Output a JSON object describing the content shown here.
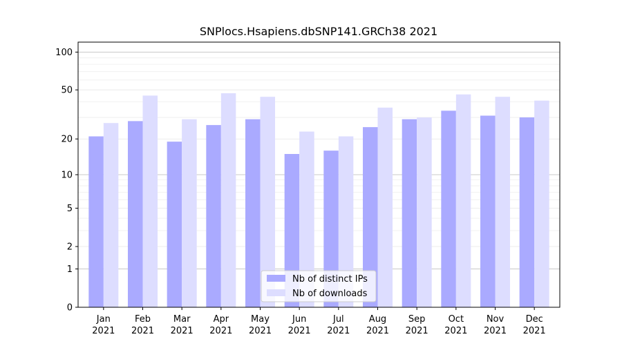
{
  "chart_data": {
    "type": "bar",
    "title": "SNPlocs.Hsapiens.dbSNP141.GRCh38 2021",
    "categories": [
      [
        "Jan",
        "2021"
      ],
      [
        "Feb",
        "2021"
      ],
      [
        "Mar",
        "2021"
      ],
      [
        "Apr",
        "2021"
      ],
      [
        "May",
        "2021"
      ],
      [
        "Jun",
        "2021"
      ],
      [
        "Jul",
        "2021"
      ],
      [
        "Aug",
        "2021"
      ],
      [
        "Sep",
        "2021"
      ],
      [
        "Oct",
        "2021"
      ],
      [
        "Nov",
        "2021"
      ],
      [
        "Dec",
        "2021"
      ]
    ],
    "series": [
      {
        "name": "Nb of distinct IPs",
        "color": "#aaaaff",
        "values": [
          21,
          28,
          19,
          26,
          29,
          15,
          16,
          25,
          29,
          34,
          31,
          30
        ]
      },
      {
        "name": "Nb of downloads",
        "color": "#ddddff",
        "values": [
          27,
          45,
          29,
          47,
          44,
          23,
          21,
          36,
          30,
          46,
          44,
          41
        ]
      }
    ],
    "y_scale": "log1p",
    "ylim": [
      0,
      120
    ],
    "yticks": [
      0,
      1,
      2,
      5,
      10,
      20,
      50,
      100
    ],
    "ytick_labels": [
      "0",
      "1",
      "2",
      "5",
      "10",
      "20",
      "50",
      "100"
    ],
    "grid": true,
    "legend_position": "bottom-center"
  }
}
